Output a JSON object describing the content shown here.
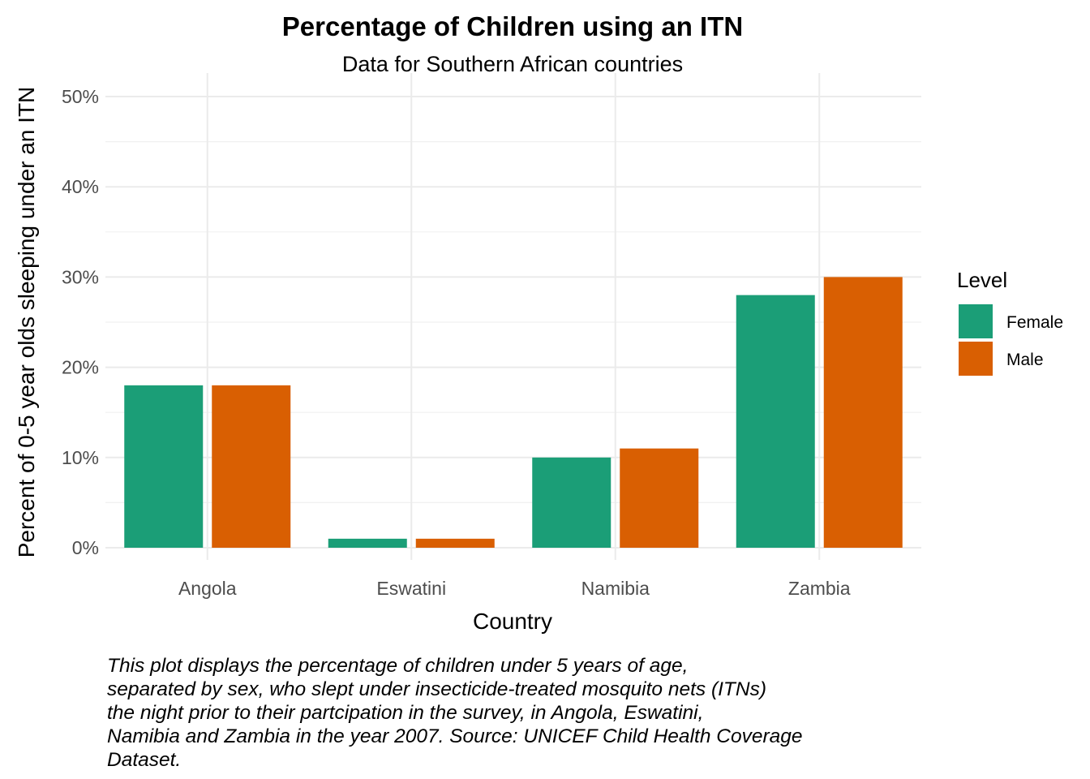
{
  "chart_data": {
    "type": "bar",
    "title": "Percentage of Children using an ITN",
    "subtitle": "Data for Southern African countries",
    "xlabel": "Country",
    "ylabel": "Percent of 0-5 year olds sleeping under an ITN",
    "categories": [
      "Angola",
      "Eswatini",
      "Namibia",
      "Zambia"
    ],
    "series": [
      {
        "name": "Female",
        "values": [
          18,
          1,
          10,
          28
        ],
        "color": "#1b9e77"
      },
      {
        "name": "Male",
        "values": [
          18,
          1,
          11,
          30
        ],
        "color": "#d95f02"
      }
    ],
    "ylim": [
      0,
      50
    ],
    "yticks": [
      0,
      10,
      20,
      30,
      40,
      50
    ],
    "ytick_labels": [
      "0%",
      "10%",
      "20%",
      "30%",
      "40%",
      "50%"
    ],
    "legend_title": "Level",
    "legend_position": "right",
    "grid": true
  },
  "caption_lines": [
    "This plot displays the percentage of children under 5 years of age,",
    "separated by sex, who slept under insecticide-treated mosquito nets (ITNs)",
    "the night prior to their partcipation in the survey, in Angola, Eswatini,",
    "Namibia and Zambia in the year 2007. Source: UNICEF Child Health Coverage",
    "Dataset."
  ]
}
